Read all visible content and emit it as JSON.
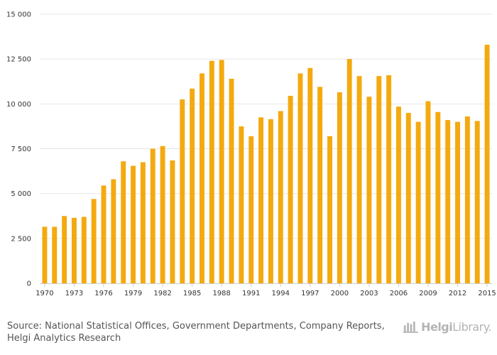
{
  "chart_data": {
    "type": "bar",
    "title": "",
    "xlabel": "",
    "ylabel": "",
    "ylim": [
      0,
      15000
    ],
    "y_ticks": [
      "0",
      "2 500",
      "5 000",
      "7 500",
      "10 000",
      "12 500",
      "15 000"
    ],
    "y_tick_values": [
      0,
      2500,
      5000,
      7500,
      10000,
      12500,
      15000
    ],
    "grid": true,
    "bar_color": "#f4a90f",
    "grid_color": "#e6e6e6",
    "categories": [
      1970,
      1971,
      1972,
      1973,
      1974,
      1975,
      1976,
      1977,
      1978,
      1979,
      1980,
      1981,
      1982,
      1983,
      1984,
      1985,
      1986,
      1987,
      1988,
      1989,
      1990,
      1991,
      1992,
      1993,
      1994,
      1995,
      1996,
      1997,
      1998,
      1999,
      2000,
      2001,
      2002,
      2003,
      2004,
      2005,
      2006,
      2007,
      2008,
      2009,
      2010,
      2011,
      2012,
      2013,
      2014,
      2015
    ],
    "x_tick_labels": [
      "1970",
      "1973",
      "1976",
      "1979",
      "1982",
      "1985",
      "1988",
      "1991",
      "1994",
      "1997",
      "2000",
      "2003",
      "2006",
      "2009",
      "2012",
      "2015"
    ],
    "values": [
      3150,
      3150,
      3750,
      3650,
      3700,
      4700,
      5450,
      5800,
      6800,
      6550,
      6750,
      7500,
      7650,
      6850,
      10250,
      10850,
      11700,
      12400,
      12450,
      11400,
      8750,
      8200,
      9250,
      9150,
      9600,
      10450,
      11700,
      12000,
      10950,
      8200,
      10650,
      12500,
      11550,
      10400,
      11550,
      11600,
      9850,
      9500,
      9000,
      10150,
      9550,
      9100,
      9000,
      9300,
      9050,
      13300
    ]
  },
  "footer": {
    "source_line1": "Source: National Statistical Offices, Government Departments, Company Reports,",
    "source_line2": "Helgi Analytics Research",
    "logo_brand": "Helgi",
    "logo_suffix": "Library."
  }
}
